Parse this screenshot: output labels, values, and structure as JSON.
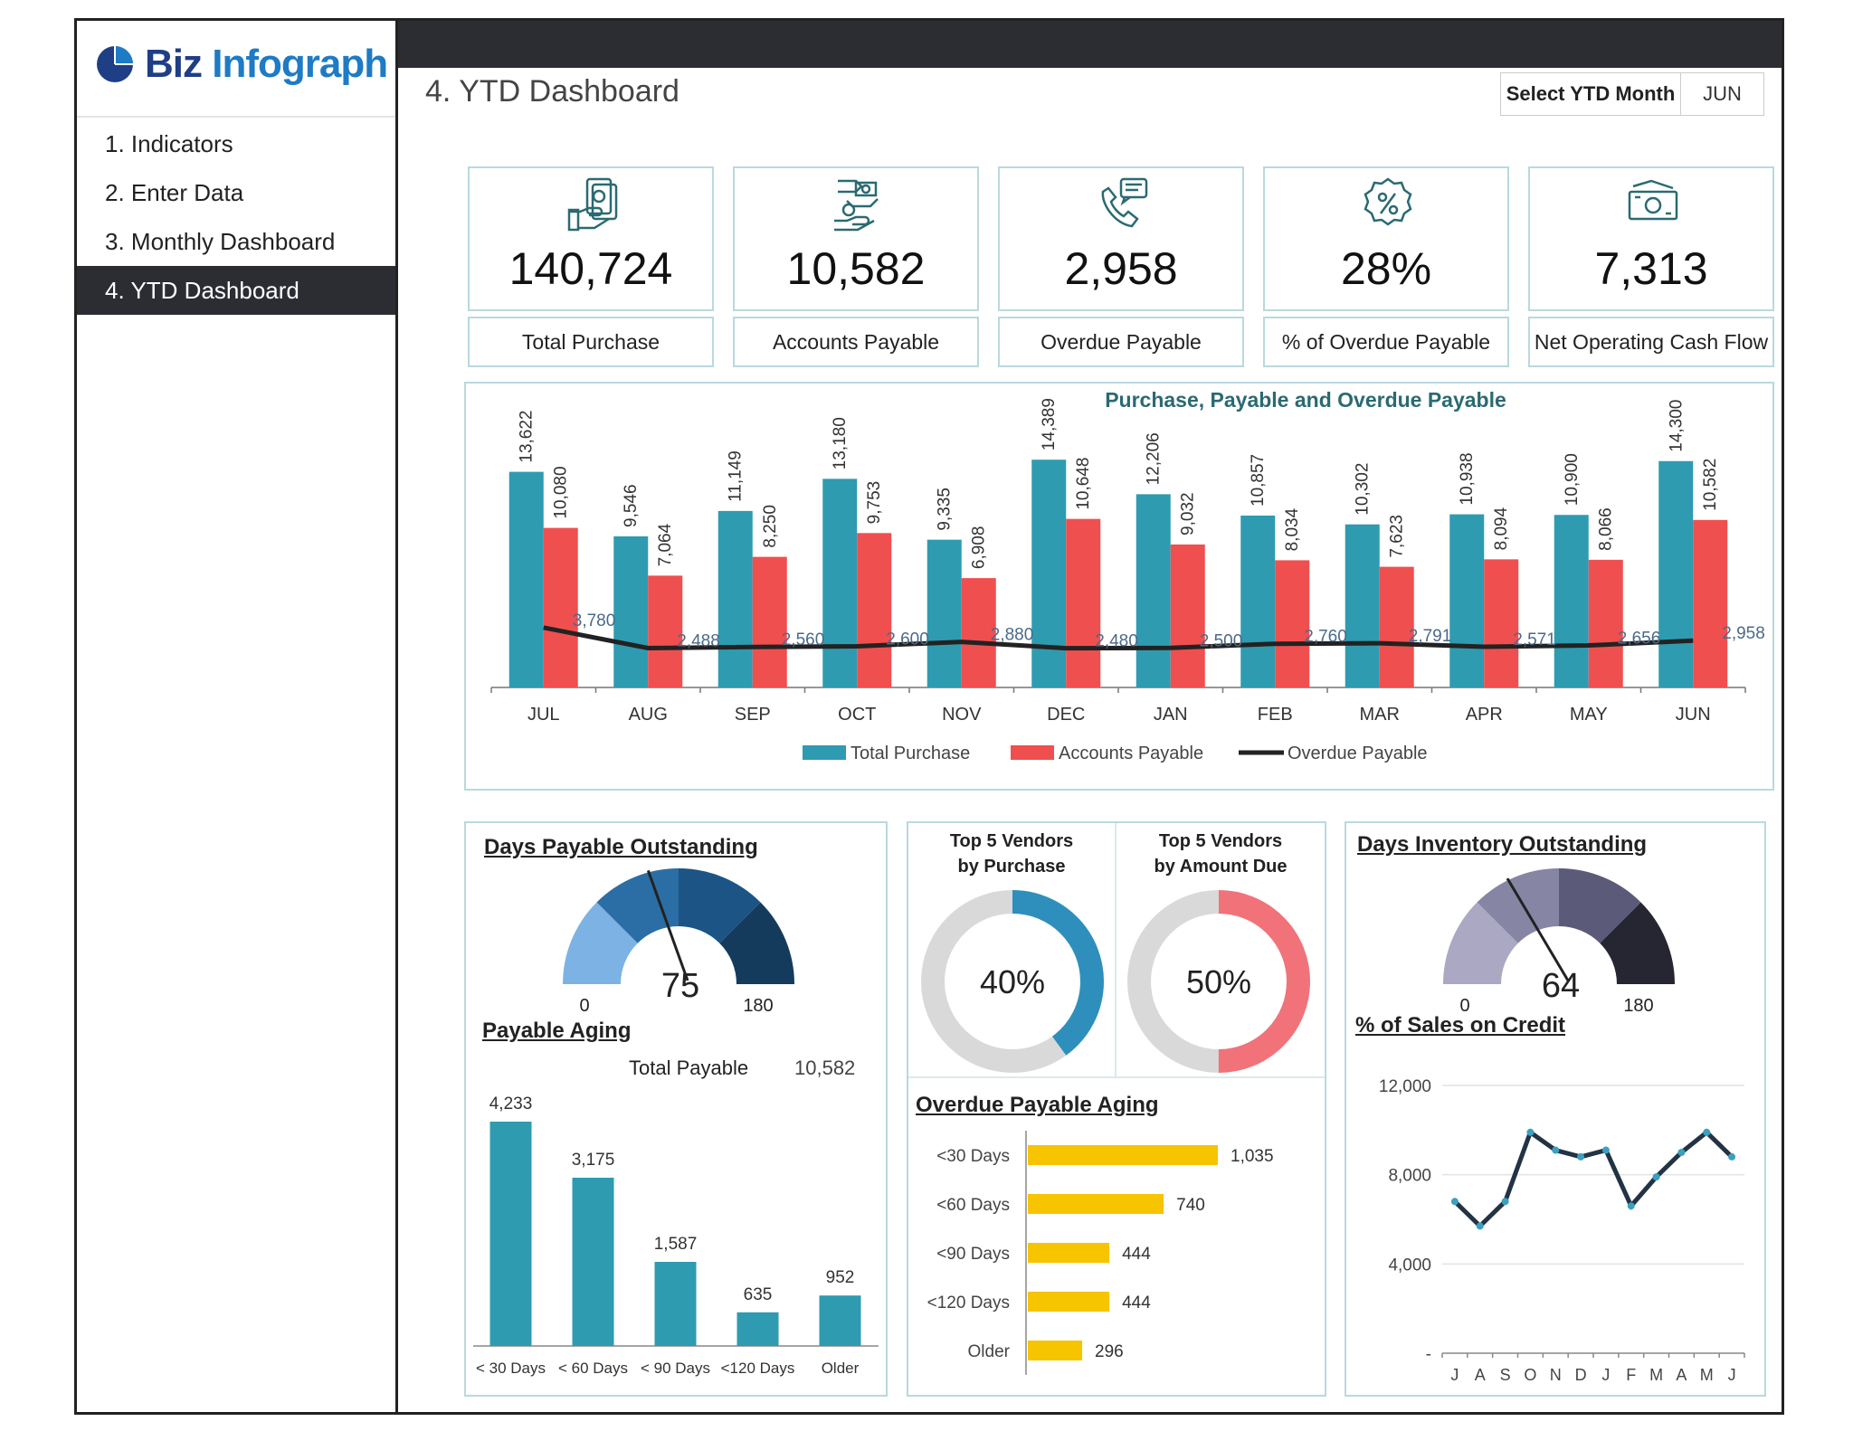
{
  "logo": {
    "part1": "Biz",
    "part2": "Infograph"
  },
  "sidebar": {
    "items": [
      {
        "label": "1. Indicators"
      },
      {
        "label": "2. Enter Data"
      },
      {
        "label": "3. Monthly Dashboard"
      },
      {
        "label": "4. YTD Dashboard"
      }
    ]
  },
  "page_title": "4. YTD Dashboard",
  "ytd_select": {
    "label": "Select YTD Month",
    "value": "JUN"
  },
  "kpis": [
    {
      "value": "140,724",
      "label": "Total Purchase",
      "icon": "cash-hand-icon"
    },
    {
      "value": "10,582",
      "label": "Accounts Payable",
      "icon": "money-exchange-icon"
    },
    {
      "value": "2,958",
      "label": "Overdue Payable",
      "icon": "phone-call-icon"
    },
    {
      "value": "28%",
      "label": "% of Overdue Payable",
      "icon": "percent-badge-icon"
    },
    {
      "value": "7,313",
      "label": "Net Operating Cash Flow",
      "icon": "banknote-icon"
    }
  ],
  "colors": {
    "teal": "#2e9bb0",
    "red": "#f04f4f",
    "dark": "#2b2d33",
    "gold": "#f7c400",
    "border": "#b9d9de",
    "titleTeal": "#2a6a72"
  },
  "sections": {
    "dpo_title": "Days Payable Outstanding",
    "aging_title": "Payable Aging",
    "total_payable_label": "Total Payable",
    "total_payable_value": "10,582",
    "top_purchase_line1": "Top 5 Vendors",
    "top_purchase_line2": "by Purchase",
    "top_due_line1": "Top 5 Vendors",
    "top_due_line2": "by Amount Due",
    "overdue_aging_title": "Overdue Payable Aging",
    "dio_title": "Days Inventory Outstanding",
    "credit_title": "% of Sales on Credit"
  },
  "chart_data": [
    {
      "type": "bar",
      "title": "Purchase, Payable and Overdue Payable",
      "categories": [
        "JUL",
        "AUG",
        "SEP",
        "OCT",
        "NOV",
        "DEC",
        "JAN",
        "FEB",
        "MAR",
        "APR",
        "MAY",
        "JUN"
      ],
      "series": [
        {
          "name": "Total Purchase",
          "type": "bar",
          "values": [
            13622,
            9546,
            11149,
            13180,
            9335,
            14389,
            12206,
            10857,
            10302,
            10938,
            10900,
            14300
          ],
          "labels": [
            "13,622",
            "9,546",
            "11,149",
            "13,180",
            "9,335",
            "14,389",
            "12,206",
            "10,857",
            "10,302",
            "10,938",
            "10,900",
            "14,300"
          ]
        },
        {
          "name": "Accounts Payable",
          "type": "bar",
          "values": [
            10080,
            7064,
            8250,
            9753,
            6908,
            10648,
            9032,
            8034,
            7623,
            8094,
            8066,
            10582
          ],
          "labels": [
            "10,080",
            "7,064",
            "8,250",
            "9,753",
            "6,908",
            "10,648",
            "9,032",
            "8,034",
            "7,623",
            "8,094",
            "8,066",
            "10,582"
          ]
        },
        {
          "name": "Overdue Payable",
          "type": "line",
          "values": [
            3780,
            2488,
            2560,
            2600,
            2880,
            2480,
            2500,
            2760,
            2791,
            2571,
            2656,
            2958
          ],
          "labels": [
            "3,780",
            "2,488",
            "2,560",
            "2,600",
            "2,880",
            "2,480",
            "2,500",
            "2,760",
            "2,791",
            "2,571",
            "2,656",
            "2,958"
          ]
        }
      ],
      "legend": "bottom"
    },
    {
      "type": "gauge",
      "name": "dpo",
      "value": 75,
      "min": 0,
      "max": 180,
      "min_label": "0",
      "max_label": "180",
      "value_label": "75"
    },
    {
      "type": "bar",
      "name": "payable_aging",
      "categories": [
        "< 30 Days",
        "< 60 Days",
        "< 90 Days",
        "<120 Days",
        "Older"
      ],
      "values": [
        4233,
        3175,
        1587,
        635,
        952
      ],
      "labels": [
        "4,233",
        "3,175",
        "1,587",
        "635",
        "952"
      ]
    },
    {
      "type": "pie",
      "name": "top5_purchase",
      "value": 40,
      "label": "40%"
    },
    {
      "type": "pie",
      "name": "top5_due",
      "value": 50,
      "label": "50%"
    },
    {
      "type": "bar",
      "name": "overdue_payable_aging",
      "orientation": "horizontal",
      "categories": [
        "<30 Days",
        "<60 Days",
        "<90 Days",
        "<120 Days",
        "Older"
      ],
      "values": [
        1035,
        740,
        444,
        444,
        296
      ],
      "labels": [
        "1,035",
        "740",
        "444",
        "444",
        "296"
      ]
    },
    {
      "type": "gauge",
      "name": "dio",
      "value": 64,
      "min": 0,
      "max": 180,
      "min_label": "0",
      "max_label": "180",
      "value_label": "64"
    },
    {
      "type": "line",
      "name": "sales_on_credit",
      "categories": [
        "J",
        "A",
        "S",
        "O",
        "N",
        "D",
        "J",
        "F",
        "M",
        "A",
        "M",
        "J"
      ],
      "values": [
        6800,
        5700,
        6800,
        9900,
        9100,
        8800,
        9100,
        6600,
        7900,
        9000,
        9900,
        8800
      ],
      "yticks": [
        "12,000",
        "8,000",
        "4,000",
        "-"
      ],
      "ylim": [
        0,
        12000
      ]
    }
  ]
}
